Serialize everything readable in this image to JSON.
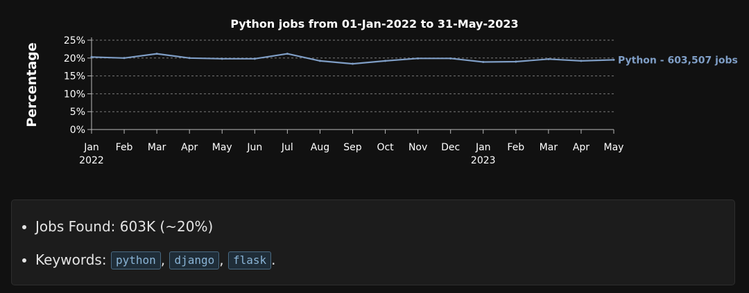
{
  "chart_data": {
    "type": "line",
    "title": "Python jobs from 01-Jan-2022 to 31-May-2023",
    "ylabel": "Percentage",
    "xlabel": "",
    "ylim": [
      0,
      25
    ],
    "yticks": [
      0,
      5,
      10,
      15,
      20,
      25
    ],
    "ytick_labels": [
      "0%",
      "5%",
      "10%",
      "15%",
      "20%",
      "25%"
    ],
    "grid": true,
    "x": [
      "2022-01",
      "2022-02",
      "2022-03",
      "2022-04",
      "2022-05",
      "2022-06",
      "2022-07",
      "2022-08",
      "2022-09",
      "2022-10",
      "2022-11",
      "2022-12",
      "2023-01",
      "2023-02",
      "2023-03",
      "2023-04",
      "2023-05"
    ],
    "xtick_labels": [
      {
        "month": "Jan",
        "year": "2022"
      },
      {
        "month": "Feb",
        "year": ""
      },
      {
        "month": "Mar",
        "year": ""
      },
      {
        "month": "Apr",
        "year": ""
      },
      {
        "month": "May",
        "year": ""
      },
      {
        "month": "Jun",
        "year": ""
      },
      {
        "month": "Jul",
        "year": ""
      },
      {
        "month": "Aug",
        "year": ""
      },
      {
        "month": "Sep",
        "year": ""
      },
      {
        "month": "Oct",
        "year": ""
      },
      {
        "month": "Nov",
        "year": ""
      },
      {
        "month": "Dec",
        "year": ""
      },
      {
        "month": "Jan",
        "year": "2023"
      },
      {
        "month": "Feb",
        "year": ""
      },
      {
        "month": "Mar",
        "year": ""
      },
      {
        "month": "Apr",
        "year": ""
      },
      {
        "month": "May",
        "year": ""
      }
    ],
    "series": [
      {
        "name": "Python - 603,507 jobs",
        "color": "#7f9ec6",
        "values": [
          20.3,
          20.0,
          21.2,
          20.0,
          19.8,
          19.8,
          21.2,
          19.2,
          18.4,
          19.2,
          19.9,
          19.9,
          18.9,
          19.0,
          19.7,
          19.2,
          19.5
        ]
      }
    ]
  },
  "summary": {
    "jobs_label": "Jobs Found:",
    "jobs_value": "603K (~20%)",
    "keywords_label": "Keywords:",
    "keywords": [
      "python",
      "django",
      "flask"
    ],
    "separator": ",",
    "terminator": "."
  }
}
